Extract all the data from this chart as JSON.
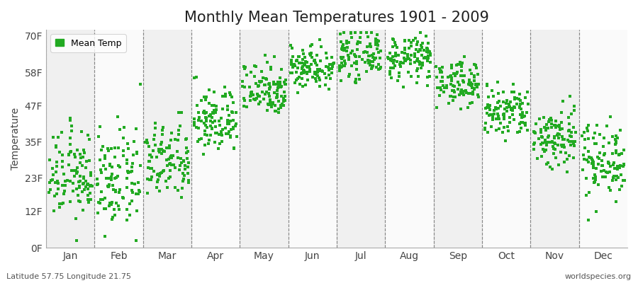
{
  "title": "Monthly Mean Temperatures 1901 - 2009",
  "ylabel": "Temperature",
  "bottom_left": "Latitude 57.75 Longitude 21.75",
  "bottom_right": "worldspecies.org",
  "legend_label": "Mean Temp",
  "dot_color": "#22AA22",
  "background_color": "#FFFFFF",
  "plot_bg_light": "#F0F0F0",
  "plot_bg_dark": "#E0E0E0",
  "yticks": [
    0,
    12,
    23,
    35,
    47,
    58,
    70
  ],
  "ytick_labels": [
    "0F",
    "12F",
    "23F",
    "35F",
    "47F",
    "58F",
    "70F"
  ],
  "ylim": [
    0,
    72
  ],
  "months": [
    "Jan",
    "Feb",
    "Mar",
    "Apr",
    "May",
    "Jun",
    "Jul",
    "Aug",
    "Sep",
    "Oct",
    "Nov",
    "Dec"
  ],
  "monthly_means_C": [
    -4.5,
    -5.5,
    -2.0,
    5.5,
    11.5,
    15.5,
    17.5,
    17.0,
    12.5,
    7.0,
    2.5,
    -1.5
  ],
  "monthly_stds_C": [
    4.0,
    4.5,
    3.5,
    3.0,
    2.5,
    2.0,
    2.0,
    2.0,
    2.0,
    2.5,
    3.0,
    3.5
  ],
  "n_years": 109,
  "seed": 12345,
  "title_fontsize": 15,
  "axis_fontsize": 10,
  "tick_fontsize": 10,
  "dot_size": 6,
  "dot_marker": "s"
}
